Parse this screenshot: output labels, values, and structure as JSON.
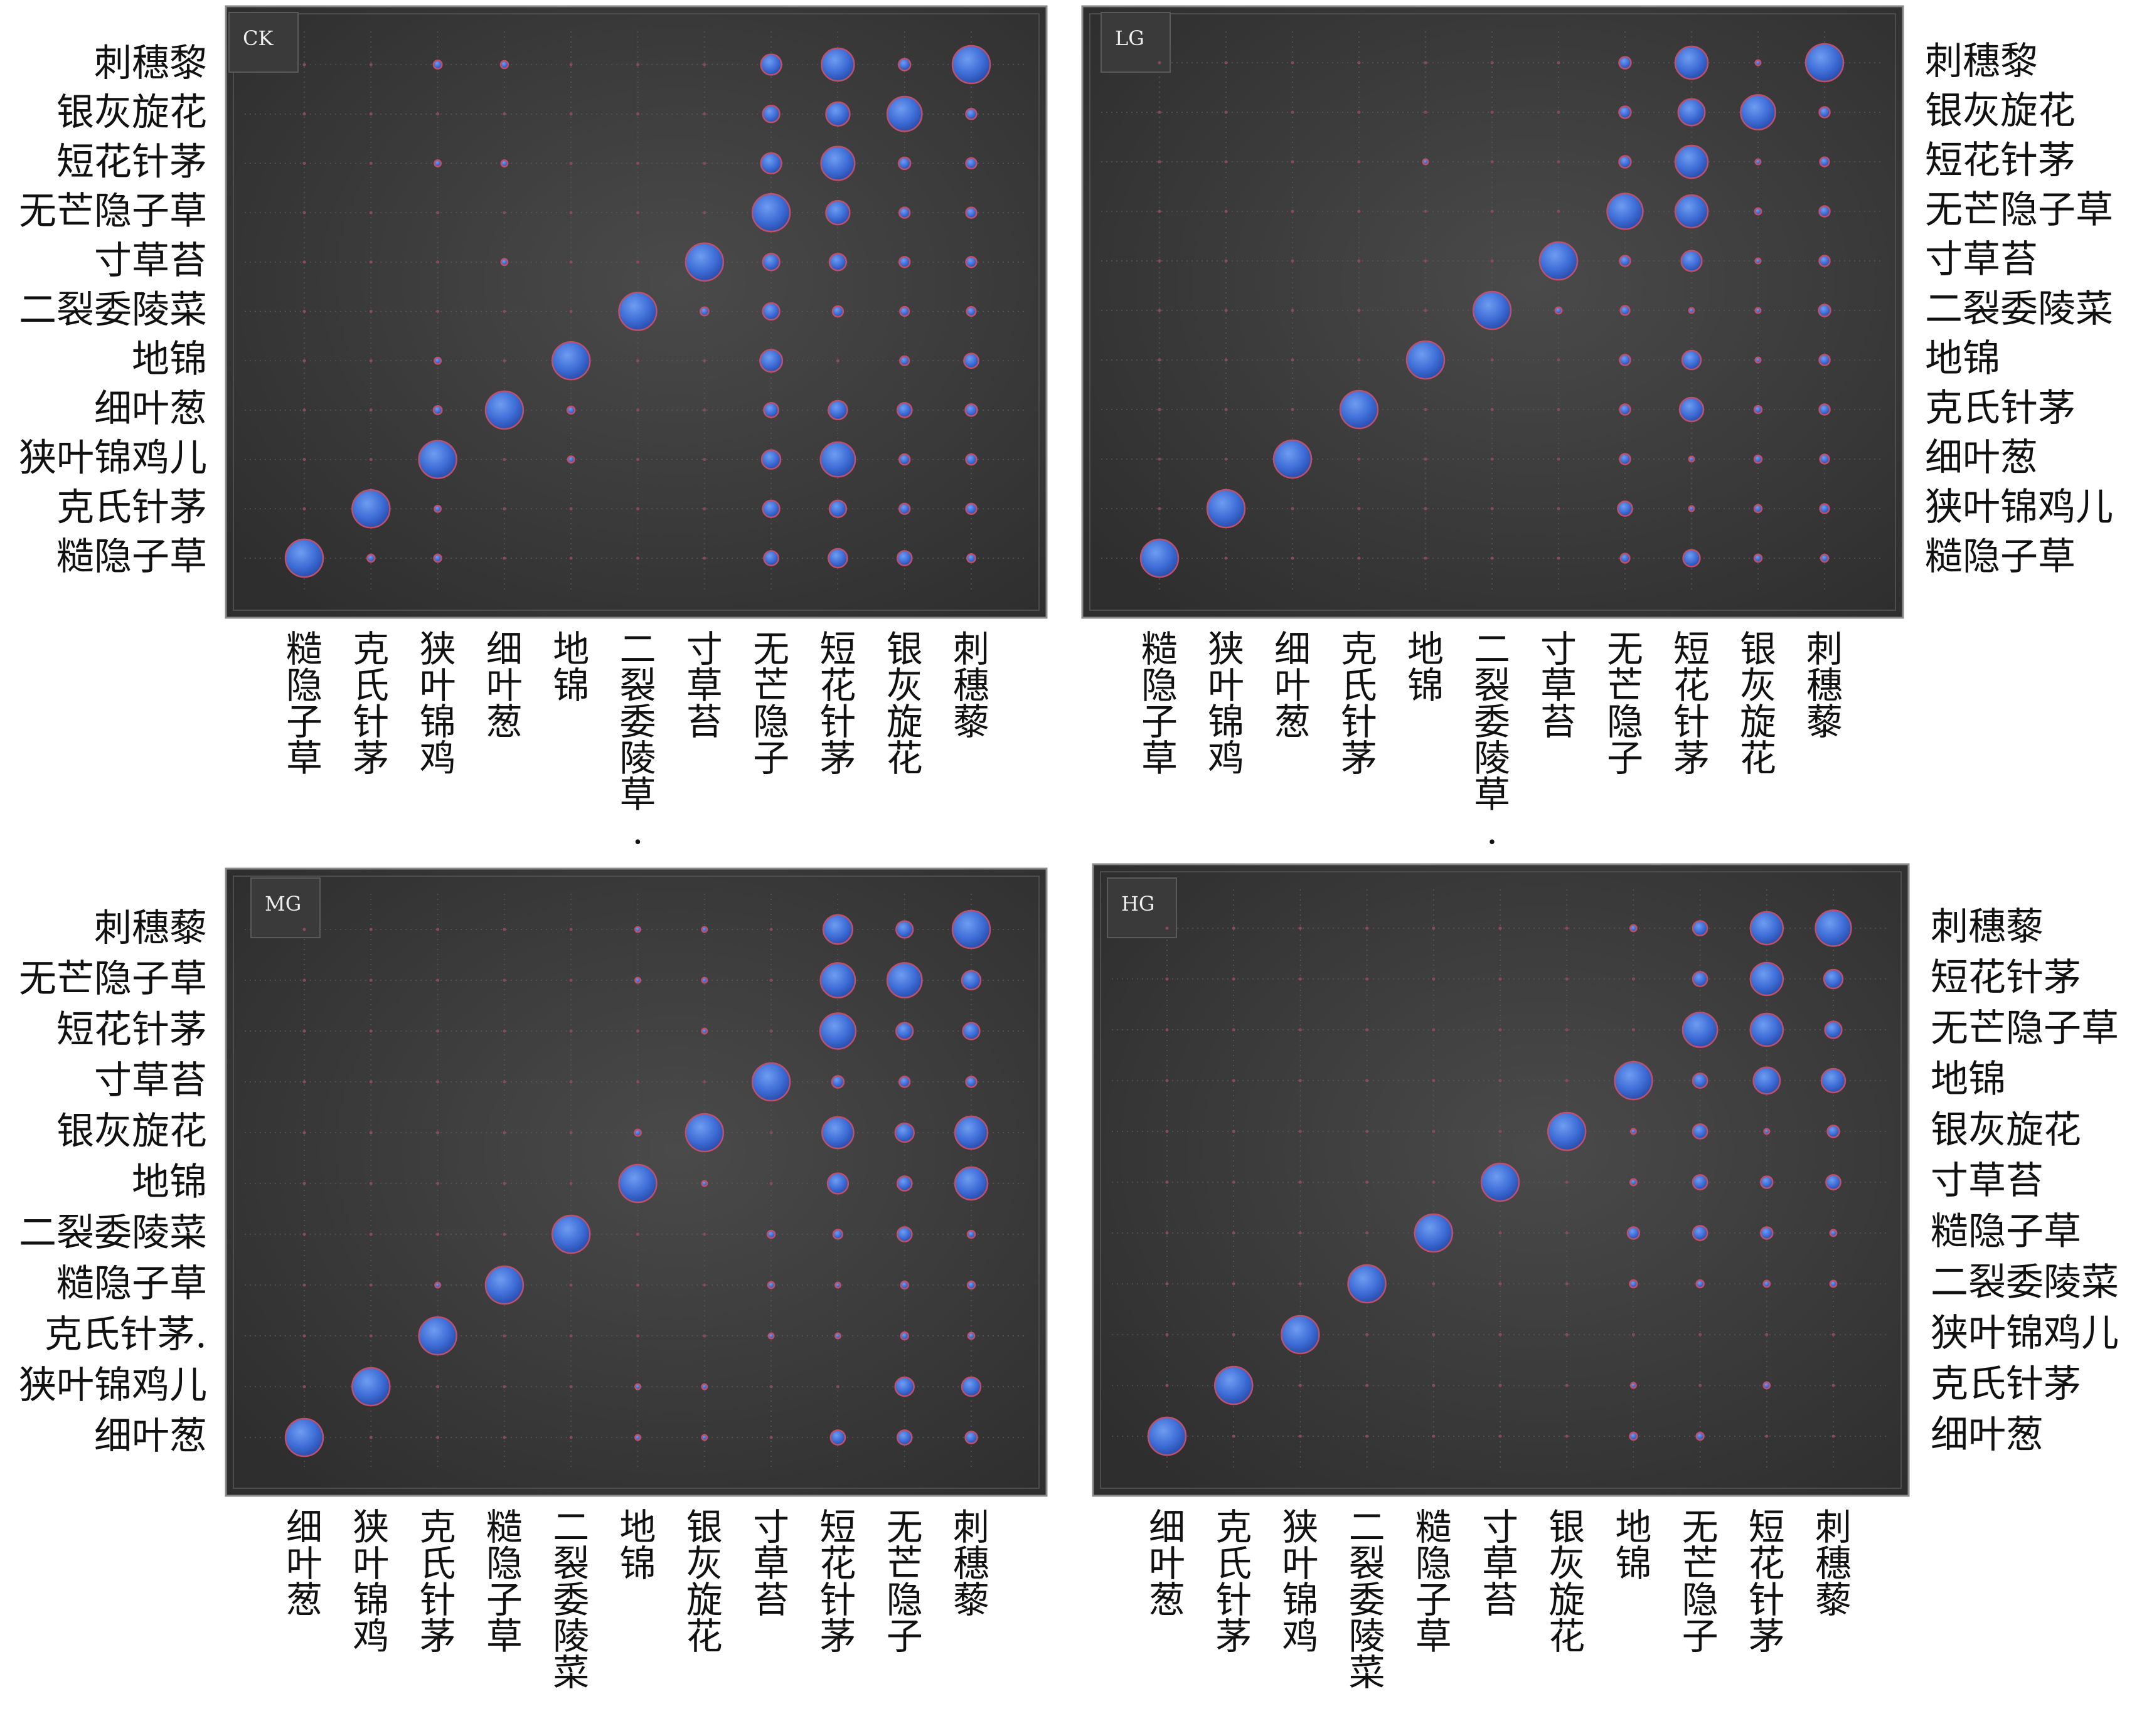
{
  "colors": {
    "bubble": "#3f6fd8",
    "bubble_edge": "#c0506a",
    "panel_bg": "#3b3b3b",
    "grid": "#555555"
  },
  "chart_data": [
    {
      "type": "scatter",
      "panel": "CK",
      "x_labels": [
        "糙隐子草",
        "克氏针茅",
        "狭叶锦鸡",
        "细叶葱",
        "地锦",
        "二裂委陵草.",
        "寸草苔",
        "无芒隐子",
        "短花针茅",
        "银灰旋花",
        "刺穗藜"
      ],
      "y_labels": [
        "刺穗黎",
        "银灰旋花",
        "短花针茅",
        "无芒隐子草",
        "寸草苔",
        "二裂委陵菜",
        "地锦",
        "细叶葱",
        "狭叶锦鸡儿",
        "克氏针茅",
        "糙隐子草"
      ],
      "size_scale": "0-1",
      "values": [
        [
          0,
          0,
          0.05,
          0.04,
          0,
          0,
          0,
          0.3,
          0.75,
          0.1,
          1
        ],
        [
          0,
          0,
          0,
          0,
          0,
          0,
          0,
          0.2,
          0.4,
          0.85,
          0.08
        ],
        [
          0,
          0,
          0.03,
          0.03,
          0,
          0,
          0,
          0.3,
          0.8,
          0.1,
          0.08
        ],
        [
          0,
          0,
          0,
          0,
          0,
          0,
          0,
          1,
          0.4,
          0.08,
          0.08
        ],
        [
          0,
          0,
          0,
          0.03,
          0,
          0,
          1,
          0.2,
          0.2,
          0.08,
          0.08
        ],
        [
          0,
          0,
          0,
          0,
          0,
          1,
          0.05,
          0.2,
          0.08,
          0.06,
          0.06
        ],
        [
          0,
          0,
          0.03,
          0,
          1,
          0,
          0,
          0.35,
          0,
          0.06,
          0.15
        ],
        [
          0,
          0,
          0.05,
          1,
          0.04,
          0,
          0,
          0.15,
          0.25,
          0.15,
          0.1
        ],
        [
          0,
          0,
          1,
          0,
          0.03,
          0,
          0,
          0.25,
          0.85,
          0.08,
          0.08
        ],
        [
          0,
          1,
          0.03,
          0,
          0,
          0,
          0,
          0.2,
          0.2,
          0.08,
          0.08
        ],
        [
          1,
          0.04,
          0.04,
          0,
          0,
          0,
          0,
          0.15,
          0.25,
          0.15,
          0.05
        ]
      ]
    },
    {
      "type": "scatter",
      "panel": "LG",
      "x_labels": [
        "糙隐子草",
        "狭叶锦鸡",
        "细叶葱",
        "克氏针茅",
        "地锦",
        "二裂委陵草.",
        "寸草苔",
        "无芒隐子",
        "短花针茅",
        "银灰旋花",
        "刺穗藜"
      ],
      "y_labels": [
        "刺穗黎",
        "银灰旋花",
        "短花针茅",
        "无芒隐子草",
        "寸草苔",
        "二裂委陵菜",
        "地锦",
        "克氏针茅",
        "细叶葱",
        "狭叶锦鸡儿",
        "糙隐子草"
      ],
      "size_scale": "0-1",
      "values": [
        [
          0,
          0,
          0,
          0,
          0,
          0,
          0,
          0.1,
          0.75,
          0.02,
          1
        ],
        [
          0,
          0,
          0,
          0,
          0,
          0,
          0,
          0.1,
          0.5,
          0.85,
          0.08
        ],
        [
          0,
          0,
          0,
          0,
          0.02,
          0,
          0,
          0.1,
          0.75,
          0.02,
          0.06
        ],
        [
          0,
          0,
          0,
          0,
          0,
          0,
          0,
          0.9,
          0.75,
          0.03,
          0.08
        ],
        [
          0,
          0,
          0,
          0,
          0,
          0,
          1,
          0.08,
          0.3,
          0.02,
          0.08
        ],
        [
          0,
          0,
          0,
          0,
          0,
          1,
          0.03,
          0.06,
          0.02,
          0.02,
          0.1
        ],
        [
          0,
          0,
          0,
          0,
          1,
          0,
          0,
          0.08,
          0.25,
          0.02,
          0.08
        ],
        [
          0,
          0,
          0,
          1,
          0,
          0,
          0,
          0.08,
          0.4,
          0.04,
          0.08
        ],
        [
          0,
          0,
          1,
          0,
          0,
          0,
          0,
          0.08,
          0.02,
          0.04,
          0.06
        ],
        [
          0,
          1,
          0,
          0,
          0,
          0,
          0,
          0.15,
          0.02,
          0.04,
          0.06
        ],
        [
          1,
          0,
          0,
          0,
          0,
          0,
          0,
          0.06,
          0.2,
          0.04,
          0.04
        ]
      ]
    },
    {
      "type": "scatter",
      "panel": "MG",
      "x_labels": [
        "细叶葱",
        "狭叶锦鸡",
        "克氏针茅",
        "糙隐子草",
        "二裂委陵菜",
        "地锦",
        "银灰旋花",
        "寸草苔",
        "短花针茅",
        "无芒隐子",
        "刺穗藜"
      ],
      "y_labels": [
        "刺穗藜",
        "无芒隐子草",
        "短花针茅",
        "寸草苔",
        "银灰旋花",
        "地锦",
        "二裂委陵菜",
        "糙隐子草",
        "克氏针茅.",
        "狭叶锦鸡儿",
        "细叶葱"
      ],
      "size_scale": "0-1",
      "values": [
        [
          0,
          0,
          0,
          0,
          0,
          0.02,
          0.02,
          0,
          0.6,
          0.2,
          1
        ],
        [
          0,
          0,
          0,
          0,
          0,
          0.02,
          0.02,
          0,
          0.85,
          0.85,
          0.25
        ],
        [
          0,
          0,
          0,
          0,
          0,
          0,
          0.02,
          0,
          0.9,
          0.2,
          0.2
        ],
        [
          0,
          0,
          0,
          0,
          0,
          0,
          0,
          1,
          0.1,
          0.08,
          0.08
        ],
        [
          0,
          0,
          0,
          0,
          0,
          0.03,
          1,
          0,
          0.7,
          0.25,
          0.75
        ],
        [
          0,
          0,
          0,
          0,
          0,
          1,
          0.02,
          0,
          0.3,
          0.15,
          0.75
        ],
        [
          0,
          0,
          0,
          0,
          1,
          0,
          0,
          0.04,
          0.06,
          0.15,
          0.04
        ],
        [
          0,
          0,
          0.02,
          1,
          0,
          0,
          0,
          0.03,
          0.02,
          0.04,
          0.04
        ],
        [
          0,
          0,
          1,
          0,
          0,
          0,
          0,
          0.02,
          0.02,
          0.04,
          0.03
        ],
        [
          0,
          1,
          0,
          0,
          0,
          0.02,
          0.02,
          0,
          0,
          0.25,
          0.25
        ],
        [
          1,
          0,
          0,
          0,
          0,
          0.02,
          0.02,
          0,
          0.15,
          0.15,
          0.1
        ]
      ]
    },
    {
      "type": "scatter",
      "panel": "HG",
      "x_labels": [
        "细叶葱",
        "克氏针茅",
        "狭叶锦鸡",
        "二裂委陵菜",
        "糙隐子草",
        "寸草苔",
        "银灰旋花",
        "地锦",
        "无芒隐子",
        "短花针茅",
        "刺穗藜"
      ],
      "y_labels": [
        "刺穗藜",
        "短花针茅",
        "无芒隐子草",
        "地锦",
        "银灰旋花",
        "寸草苔",
        "糙隐子草",
        "二裂委陵菜",
        "狭叶锦鸡儿",
        "克氏针茅",
        "细叶葱"
      ],
      "size_scale": "0-1",
      "values": [
        [
          0,
          0,
          0,
          0,
          0,
          0,
          0,
          0.03,
          0.15,
          0.75,
          0.9
        ],
        [
          0,
          0,
          0,
          0,
          0,
          0,
          0,
          0,
          0.15,
          0.75,
          0.25
        ],
        [
          0,
          0,
          0,
          0,
          0,
          0,
          0,
          0,
          0.85,
          0.75,
          0.2
        ],
        [
          0,
          0,
          0,
          0,
          0,
          0,
          0,
          1,
          0.15,
          0.5,
          0.4
        ],
        [
          0,
          0,
          0,
          0,
          0,
          0,
          1,
          0.02,
          0.15,
          0.02,
          0.1
        ],
        [
          0,
          0,
          0,
          0,
          0,
          1,
          0,
          0.03,
          0.15,
          0.1,
          0.15
        ],
        [
          0,
          0,
          0,
          0,
          1,
          0,
          0,
          0.1,
          0.15,
          0.1,
          0.03
        ],
        [
          0,
          0,
          0,
          1,
          0,
          0,
          0,
          0.04,
          0.04,
          0.03,
          0.03
        ],
        [
          0,
          0,
          1,
          0,
          0,
          0,
          0,
          0,
          0,
          0,
          0
        ],
        [
          0,
          1,
          0,
          0,
          0,
          0,
          0,
          0.02,
          0,
          0.03,
          0
        ],
        [
          1,
          0,
          0,
          0,
          0,
          0,
          0,
          0.04,
          0.04,
          0,
          0
        ]
      ]
    }
  ]
}
